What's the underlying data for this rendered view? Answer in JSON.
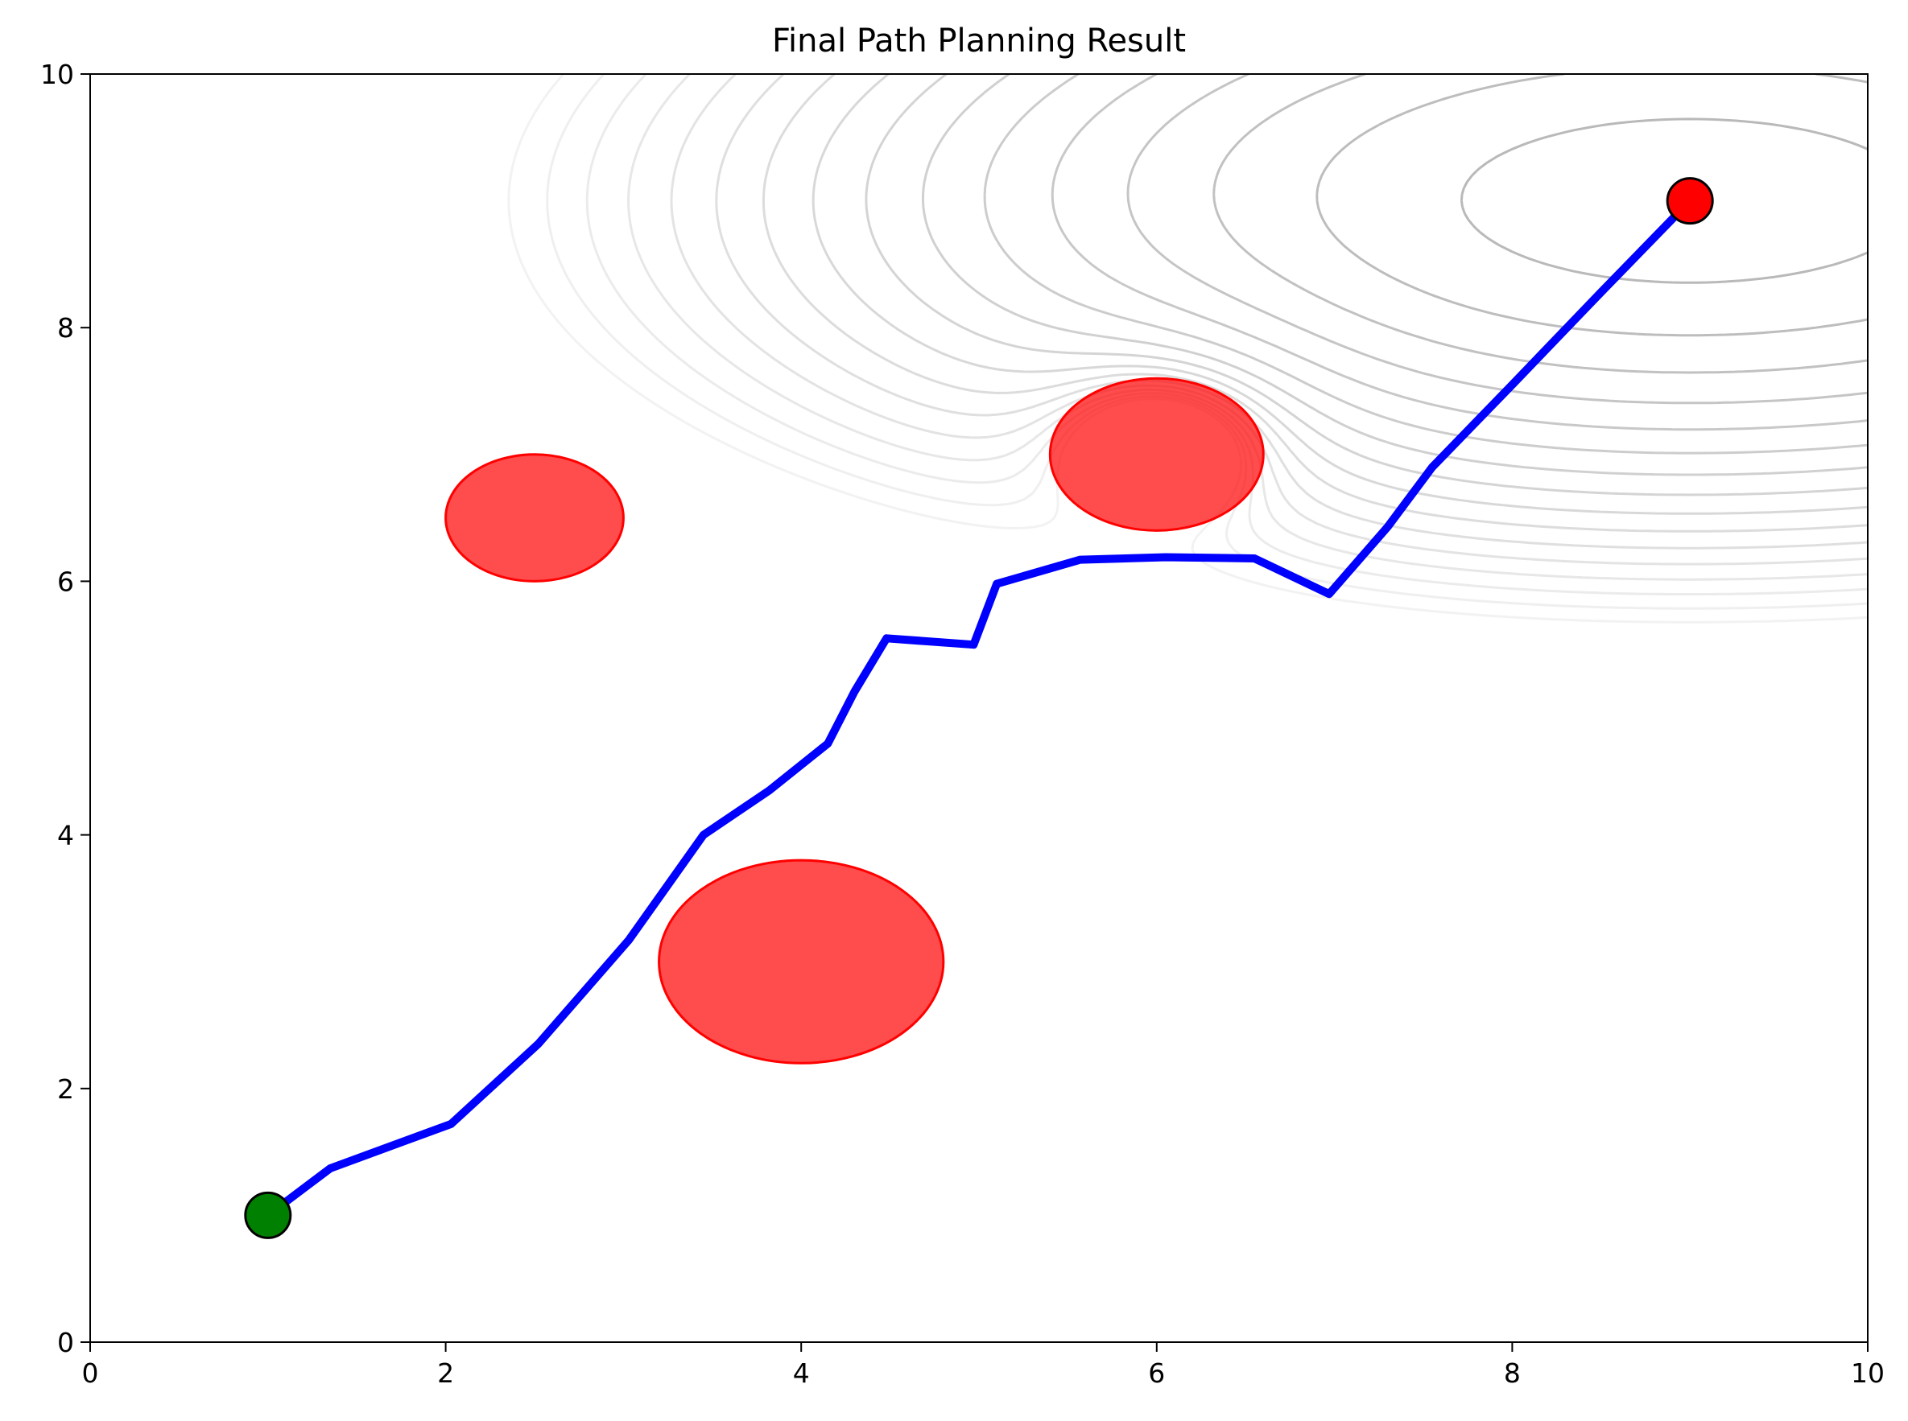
{
  "chart_data": {
    "type": "line",
    "title": "Final Path Planning Result",
    "xlabel": "",
    "ylabel": "",
    "xlim": [
      0,
      10
    ],
    "ylim": [
      0,
      10
    ],
    "xticks": [
      0,
      2,
      4,
      6,
      8,
      10
    ],
    "yticks": [
      0,
      2,
      4,
      6,
      8,
      10
    ],
    "grid": false,
    "series": [
      {
        "color": "#0000ff",
        "x": [
          1.0,
          1.35,
          2.03,
          2.52,
          3.03,
          3.45,
          3.82,
          4.15,
          4.3,
          4.48,
          4.97,
          5.1,
          5.57,
          6.05,
          6.55,
          6.97,
          7.3,
          7.55,
          8.0,
          8.5,
          9.0
        ],
        "y": [
          1.0,
          1.37,
          1.72,
          2.35,
          3.17,
          4.0,
          4.35,
          4.72,
          5.13,
          5.55,
          5.5,
          5.98,
          6.17,
          6.19,
          6.18,
          5.9,
          6.43,
          6.9,
          7.55,
          8.28,
          9.0
        ]
      }
    ],
    "markers": [
      {
        "label": "start",
        "x": 1.0,
        "y": 1.0,
        "color": "#008000"
      },
      {
        "label": "goal",
        "x": 9.0,
        "y": 9.0,
        "color": "#ff0000"
      }
    ],
    "obstacles": [
      {
        "cx": 2.5,
        "cy": 6.5,
        "rx": 0.5,
        "ry": 0.5,
        "color": "#ff0000"
      },
      {
        "cx": 6.0,
        "cy": 7.0,
        "rx": 0.6,
        "ry": 0.6,
        "color": "#ff0000"
      },
      {
        "cx": 4.0,
        "cy": 3.0,
        "rx": 0.8,
        "ry": 0.8,
        "color": "#ff0000"
      }
    ],
    "potential_contours": {
      "goal": [
        9.0,
        9.0
      ],
      "obstacle": [
        6.0,
        7.0
      ],
      "levels": 16,
      "color": "#808080"
    }
  }
}
